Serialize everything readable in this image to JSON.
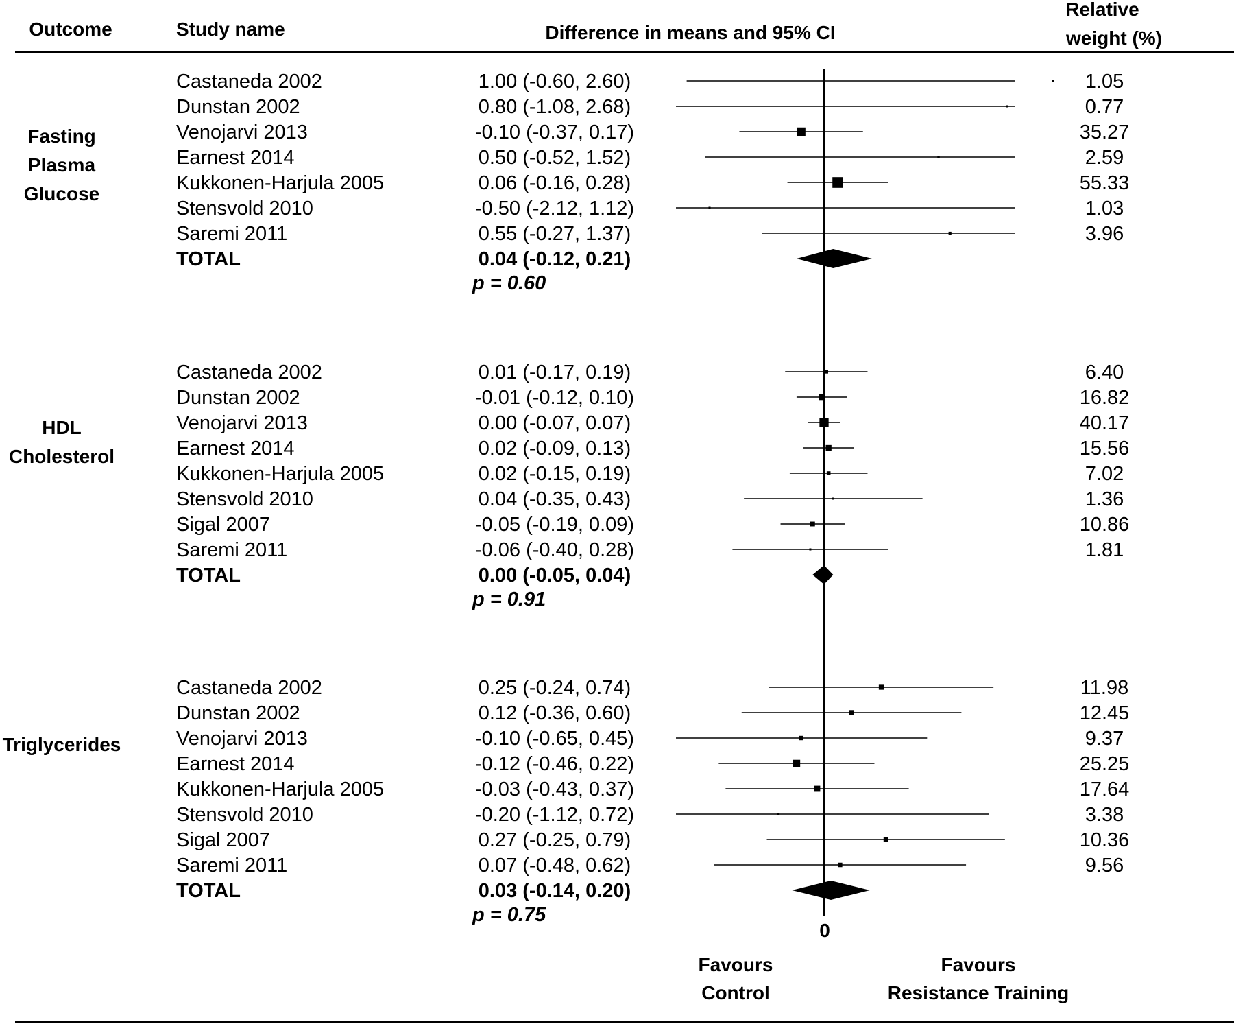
{
  "chart_data": {
    "type": "forest",
    "headers": {
      "outcome": "Outcome",
      "study": "Study name",
      "effect": "Difference in means and 95% CI",
      "weight_line1": "Relative",
      "weight_line2": "weight (%)"
    },
    "zero_label": "0",
    "favours_left": [
      "Favours",
      "Control"
    ],
    "favours_right": [
      "Favours",
      "Resistance Training"
    ],
    "xlim": [
      -0.65,
      0.85
    ],
    "groups": [
      {
        "outcome": [
          "Fasting",
          "Plasma",
          "Glucose"
        ],
        "studies": [
          {
            "name": "Castaneda 2002",
            "ci_text": "1.00 (-0.60, 2.60)",
            "est": 1.0,
            "lo": -0.6,
            "hi": 2.6,
            "weight": "1.05"
          },
          {
            "name": "Dunstan 2002",
            "ci_text": "0.80 (-1.08, 2.68)",
            "est": 0.8,
            "lo": -1.08,
            "hi": 2.68,
            "weight": "0.77"
          },
          {
            "name": "Venojarvi 2013",
            "ci_text": "-0.10 (-0.37, 0.17)",
            "est": -0.1,
            "lo": -0.37,
            "hi": 0.17,
            "weight": "35.27"
          },
          {
            "name": "Earnest 2014",
            "ci_text": "0.50 (-0.52, 1.52)",
            "est": 0.5,
            "lo": -0.52,
            "hi": 1.52,
            "weight": "2.59"
          },
          {
            "name": "Kukkonen-Harjula 2005",
            "ci_text": "0.06 (-0.16, 0.28)",
            "est": 0.06,
            "lo": -0.16,
            "hi": 0.28,
            "weight": "55.33"
          },
          {
            "name": "Stensvold 2010",
            "ci_text": "-0.50 (-2.12, 1.12)",
            "est": -0.5,
            "lo": -2.12,
            "hi": 1.12,
            "weight": "1.03"
          },
          {
            "name": "Saremi 2011",
            "ci_text": "0.55 (-0.27, 1.37)",
            "est": 0.55,
            "lo": -0.27,
            "hi": 1.37,
            "weight": "3.96"
          }
        ],
        "total": {
          "label": "TOTAL",
          "ci_text": "0.04 (-0.12, 0.21)",
          "est": 0.04,
          "lo": -0.12,
          "hi": 0.21
        },
        "p_text": "p = 0.60"
      },
      {
        "outcome": [
          "HDL",
          "Cholesterol"
        ],
        "studies": [
          {
            "name": "Castaneda 2002",
            "ci_text": "0.01 (-0.17, 0.19)",
            "est": 0.01,
            "lo": -0.17,
            "hi": 0.19,
            "weight": "6.40"
          },
          {
            "name": "Dunstan 2002",
            "ci_text": "-0.01 (-0.12, 0.10)",
            "est": -0.01,
            "lo": -0.12,
            "hi": 0.1,
            "weight": "16.82"
          },
          {
            "name": "Venojarvi 2013",
            "ci_text": "0.00 (-0.07, 0.07)",
            "est": 0.0,
            "lo": -0.07,
            "hi": 0.07,
            "weight": "40.17"
          },
          {
            "name": "Earnest 2014",
            "ci_text": "0.02 (-0.09, 0.13)",
            "est": 0.02,
            "lo": -0.09,
            "hi": 0.13,
            "weight": "15.56"
          },
          {
            "name": "Kukkonen-Harjula 2005",
            "ci_text": "0.02 (-0.15, 0.19)",
            "est": 0.02,
            "lo": -0.15,
            "hi": 0.19,
            "weight": "7.02"
          },
          {
            "name": "Stensvold 2010",
            "ci_text": "0.04 (-0.35, 0.43)",
            "est": 0.04,
            "lo": -0.35,
            "hi": 0.43,
            "weight": "1.36"
          },
          {
            "name": "Sigal 2007",
            "ci_text": "-0.05 (-0.19, 0.09)",
            "est": -0.05,
            "lo": -0.19,
            "hi": 0.09,
            "weight": "10.86"
          },
          {
            "name": "Saremi 2011",
            "ci_text": "-0.06 (-0.40, 0.28)",
            "est": -0.06,
            "lo": -0.4,
            "hi": 0.28,
            "weight": "1.81"
          }
        ],
        "total": {
          "label": "TOTAL",
          "ci_text": "0.00 (-0.05, 0.04)",
          "est": 0.0,
          "lo": -0.05,
          "hi": 0.04
        },
        "p_text": "p = 0.91"
      },
      {
        "outcome": [
          "Triglycerides"
        ],
        "studies": [
          {
            "name": "Castaneda 2002",
            "ci_text": "0.25 (-0.24, 0.74)",
            "est": 0.25,
            "lo": -0.24,
            "hi": 0.74,
            "weight": "11.98"
          },
          {
            "name": "Dunstan 2002",
            "ci_text": "0.12 (-0.36, 0.60)",
            "est": 0.12,
            "lo": -0.36,
            "hi": 0.6,
            "weight": "12.45"
          },
          {
            "name": "Venojarvi 2013",
            "ci_text": "-0.10 (-0.65, 0.45)",
            "est": -0.1,
            "lo": -0.65,
            "hi": 0.45,
            "weight": "9.37"
          },
          {
            "name": "Earnest 2014",
            "ci_text": "-0.12 (-0.46, 0.22)",
            "est": -0.12,
            "lo": -0.46,
            "hi": 0.22,
            "weight": "25.25"
          },
          {
            "name": "Kukkonen-Harjula 2005",
            "ci_text": "-0.03 (-0.43, 0.37)",
            "est": -0.03,
            "lo": -0.43,
            "hi": 0.37,
            "weight": "17.64"
          },
          {
            "name": "Stensvold 2010",
            "ci_text": "-0.20 (-1.12, 0.72)",
            "est": -0.2,
            "lo": -1.12,
            "hi": 0.72,
            "weight": "3.38"
          },
          {
            "name": "Sigal 2007",
            "ci_text": "0.27 (-0.25, 0.79)",
            "est": 0.27,
            "lo": -0.25,
            "hi": 0.79,
            "weight": "10.36"
          },
          {
            "name": "Saremi 2011",
            "ci_text": "0.07 (-0.48, 0.62)",
            "est": 0.07,
            "lo": -0.48,
            "hi": 0.62,
            "weight": "9.56"
          }
        ],
        "total": {
          "label": "TOTAL",
          "ci_text": "0.03 (-0.14, 0.20)",
          "est": 0.03,
          "lo": -0.14,
          "hi": 0.2
        },
        "p_text": "p = 0.75"
      }
    ]
  }
}
